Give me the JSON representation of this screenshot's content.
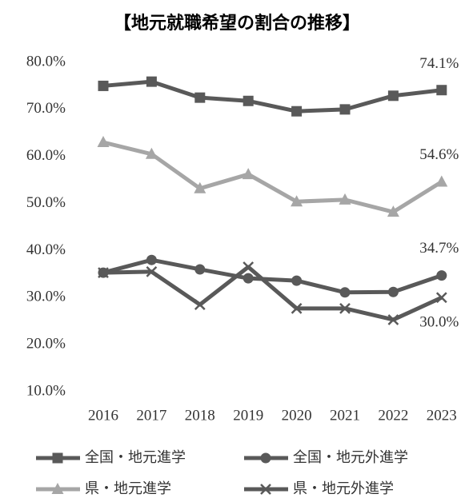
{
  "chart_data": {
    "type": "line",
    "title": "【地元就職希望の割合の推移】",
    "categories": [
      "2016",
      "2017",
      "2018",
      "2019",
      "2020",
      "2021",
      "2022",
      "2023"
    ],
    "ylim": [
      10,
      80
    ],
    "yticks": [
      {
        "value": 10,
        "label": "10.0%"
      },
      {
        "value": 20,
        "label": "20.0%"
      },
      {
        "value": 30,
        "label": "30.0%"
      },
      {
        "value": 40,
        "label": "40.0%"
      },
      {
        "value": 50,
        "label": "50.0%"
      },
      {
        "value": 60,
        "label": "60.0%"
      },
      {
        "value": 70,
        "label": "70.0%"
      },
      {
        "value": 80,
        "label": "80.0%"
      }
    ],
    "grid": false,
    "legend": "bottom",
    "series": [
      {
        "name": "全国・地元進学",
        "color": "#595959",
        "marker": "square",
        "values": [
          75.0,
          75.9,
          72.5,
          71.8,
          69.6,
          70.0,
          72.9,
          74.1
        ],
        "value_labels": [
          null,
          null,
          null,
          null,
          null,
          null,
          null,
          "74.1%"
        ]
      },
      {
        "name": "全国・地元外進学",
        "color": "#595959",
        "marker": "circle",
        "values": [
          35.3,
          38.0,
          36.0,
          34.1,
          33.6,
          31.1,
          31.2,
          34.7
        ],
        "value_labels": [
          null,
          null,
          null,
          null,
          null,
          null,
          null,
          "34.7%"
        ]
      },
      {
        "name": "県・地元進学",
        "color": "#a6a6a6",
        "marker": "triangle",
        "values": [
          63.0,
          60.5,
          53.2,
          56.2,
          50.4,
          50.8,
          48.2,
          54.6
        ],
        "value_labels": [
          null,
          null,
          null,
          null,
          null,
          null,
          null,
          "54.6%"
        ]
      },
      {
        "name": "県・地元外進学",
        "color": "#595959",
        "marker": "x",
        "values": [
          35.3,
          35.5,
          28.5,
          36.5,
          27.7,
          27.7,
          25.3,
          30.0
        ],
        "value_labels": [
          null,
          null,
          null,
          null,
          null,
          null,
          null,
          "30.0%"
        ]
      }
    ]
  }
}
